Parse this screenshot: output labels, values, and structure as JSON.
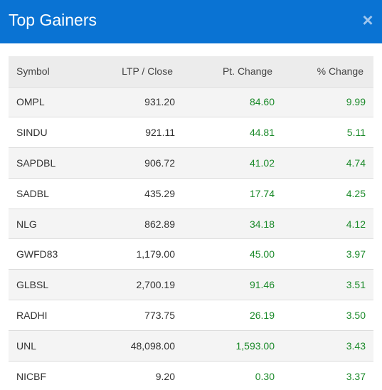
{
  "header": {
    "title": "Top Gainers",
    "close_glyph": "×",
    "close_icon": "close-icon",
    "background": "#0a73d3"
  },
  "table": {
    "columns": [
      "Symbol",
      "LTP / Close",
      "Pt. Change",
      "% Change"
    ],
    "rows": [
      {
        "symbol": "OMPL",
        "ltp": "931.20",
        "pt_change": "84.60",
        "pct_change": "9.99"
      },
      {
        "symbol": "SINDU",
        "ltp": "921.11",
        "pt_change": "44.81",
        "pct_change": "5.11"
      },
      {
        "symbol": "SAPDBL",
        "ltp": "906.72",
        "pt_change": "41.02",
        "pct_change": "4.74"
      },
      {
        "symbol": "SADBL",
        "ltp": "435.29",
        "pt_change": "17.74",
        "pct_change": "4.25"
      },
      {
        "symbol": "NLG",
        "ltp": "862.89",
        "pt_change": "34.18",
        "pct_change": "4.12"
      },
      {
        "symbol": "GWFD83",
        "ltp": "1,179.00",
        "pt_change": "45.00",
        "pct_change": "3.97"
      },
      {
        "symbol": "GLBSL",
        "ltp": "2,700.19",
        "pt_change": "91.46",
        "pct_change": "3.51"
      },
      {
        "symbol": "RADHI",
        "ltp": "773.75",
        "pt_change": "26.19",
        "pct_change": "3.50"
      },
      {
        "symbol": "UNL",
        "ltp": "48,098.00",
        "pt_change": "1,593.00",
        "pct_change": "3.43"
      },
      {
        "symbol": "NICBF",
        "ltp": "9.20",
        "pt_change": "0.30",
        "pct_change": "3.37"
      }
    ],
    "gain_color": "#1b8a2a"
  }
}
